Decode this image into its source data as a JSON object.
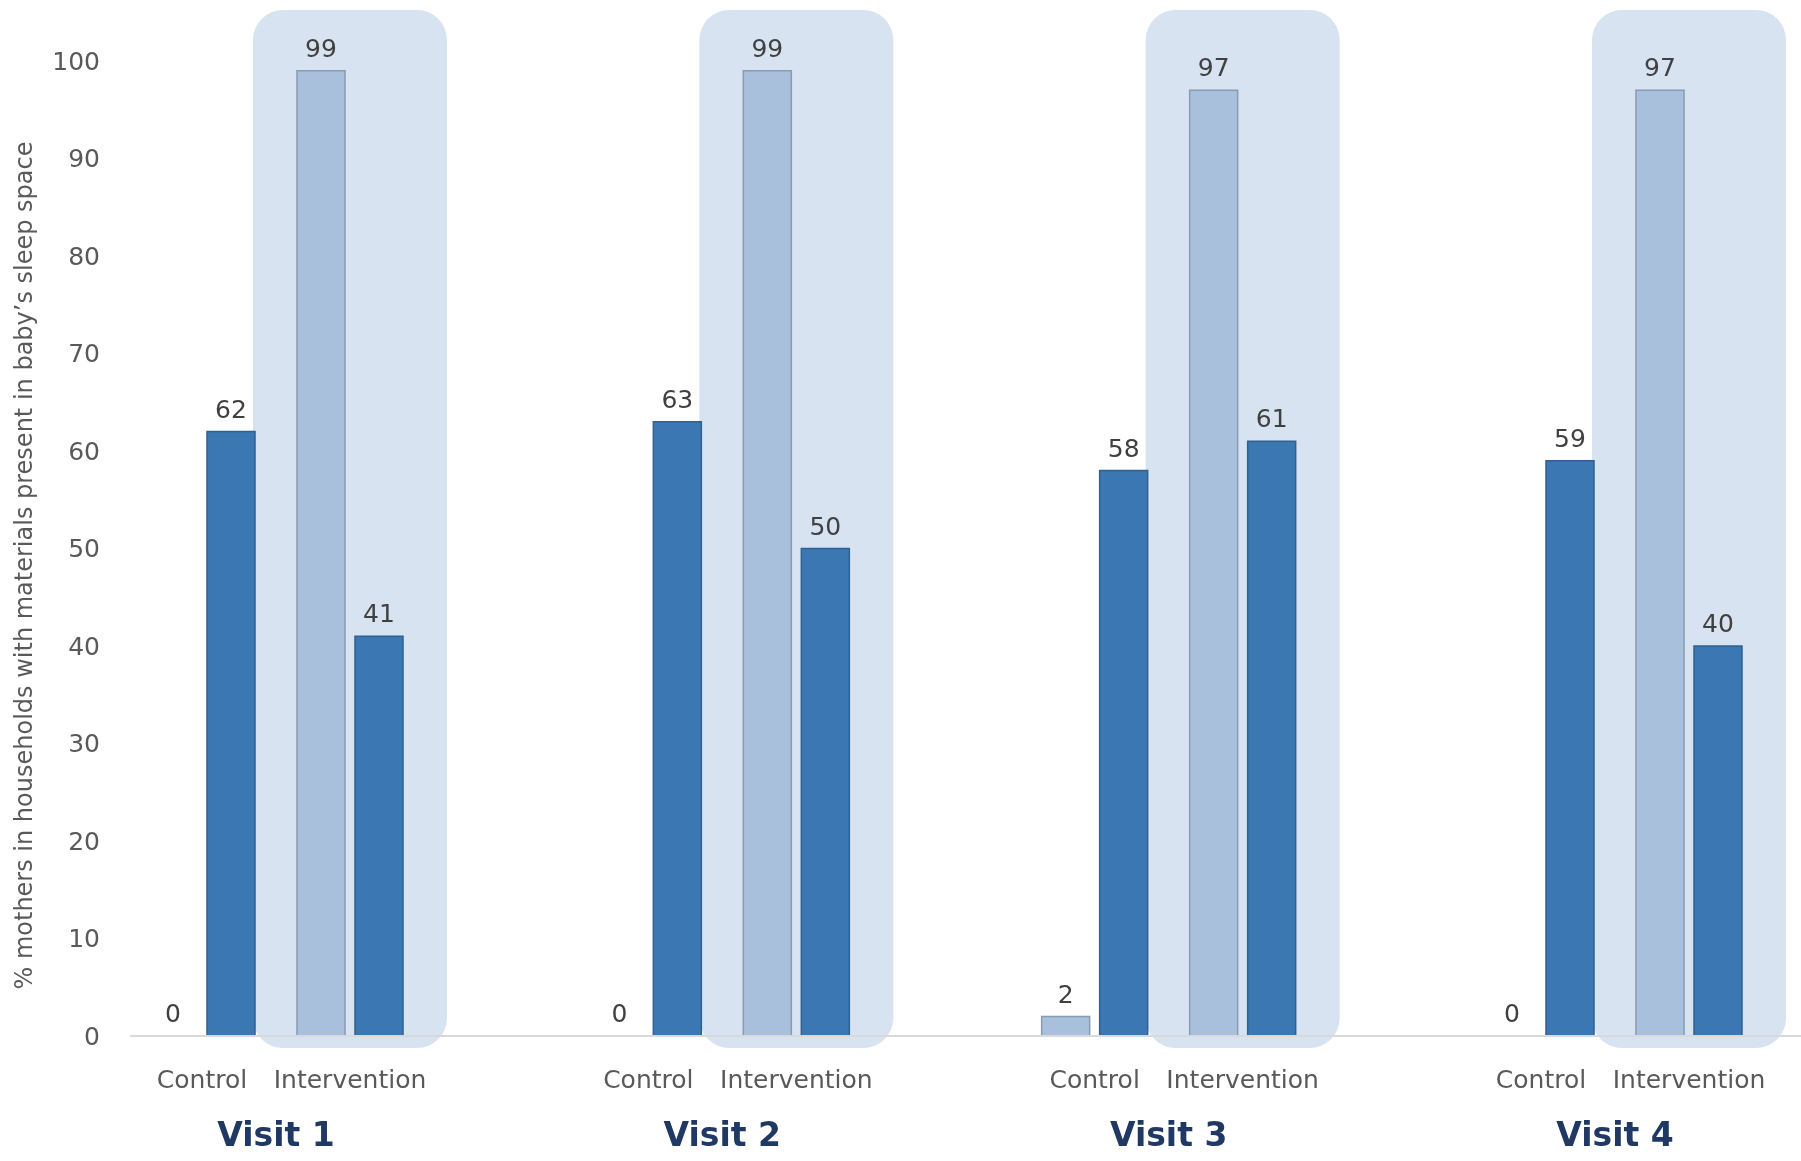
{
  "chart_data": {
    "type": "bar",
    "ylabel": "% mothers in households with materials present in baby’s sleep space",
    "categories": [
      "Control",
      "Intervention",
      "Control",
      "Intervention",
      "Control",
      "Intervention",
      "Control",
      "Intervention"
    ],
    "series": [
      {
        "color": "#a9c0dc",
        "values": [
          0,
          99,
          0,
          99,
          2,
          97,
          0,
          97
        ]
      },
      {
        "color": "#3b77b3",
        "values": [
          62,
          41,
          63,
          50,
          58,
          61,
          59,
          40
        ]
      }
    ],
    "ylim": [
      0,
      100
    ],
    "yticks": [
      0,
      10,
      20,
      30,
      40,
      50,
      60,
      70,
      80,
      90,
      100
    ],
    "grid": false,
    "data_labels": true,
    "annotations": [
      "Visit 1",
      "Visit 2",
      "Visit 3",
      "Visit 4"
    ]
  }
}
